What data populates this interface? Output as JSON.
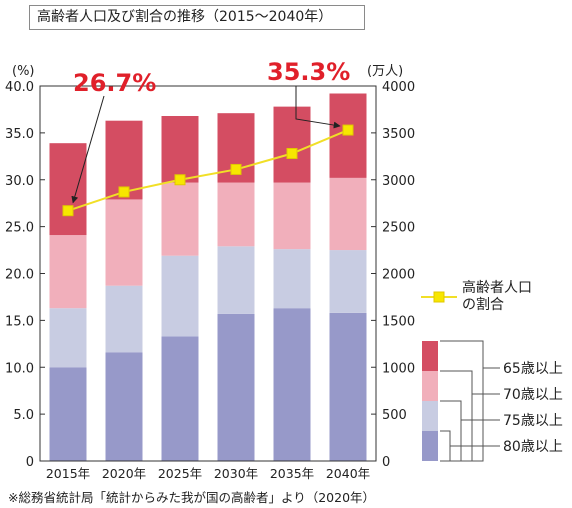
{
  "title": "高齢者人口及び割合の推移（2015〜2040年）",
  "source": "※総務省統計局「統計からみた我が国の高齢者」より（2020年）",
  "chart_data": {
    "type": "bar",
    "stacked": true,
    "categories": [
      "2015年",
      "2020年",
      "2025年",
      "2030年",
      "2035年",
      "2040年"
    ],
    "y_left": {
      "unit_label": "(%)",
      "ylim": [
        0,
        40
      ],
      "ticks": [
        "0",
        "5.0",
        "10.0",
        "15.0",
        "20.0",
        "25.0",
        "30.0",
        "35.0",
        "40.0"
      ]
    },
    "y_right": {
      "unit_label": "(万人)",
      "ylim": [
        0,
        4000
      ],
      "ticks": [
        "0",
        "500",
        "1000",
        "1500",
        "2000",
        "2500",
        "3000",
        "3500",
        "4000"
      ]
    },
    "series": [
      {
        "name": "80歳以上",
        "color": "#9799c9",
        "values": [
          1000,
          1160,
          1330,
          1570,
          1630,
          1580
        ]
      },
      {
        "name": "75歳以上",
        "color": "#c8cce2",
        "values": [
          630,
          710,
          860,
          720,
          630,
          670
        ]
      },
      {
        "name": "70歳以上",
        "color": "#f1afbb",
        "values": [
          780,
          920,
          780,
          680,
          710,
          770
        ]
      },
      {
        "name": "65歳以上",
        "color": "#d44d62",
        "values": [
          980,
          840,
          710,
          740,
          810,
          900
        ]
      }
    ],
    "line": {
      "name": "高齢者人口の割合",
      "color": "#f1df27",
      "values": [
        26.7,
        28.7,
        30.0,
        31.1,
        32.8,
        35.3
      ]
    },
    "annotations": [
      {
        "text": "26.7%",
        "category": "2015年"
      },
      {
        "text": "35.3%",
        "category": "2040年"
      }
    ],
    "legend": {
      "line_label": "高齢者人口\nの割合",
      "bracket_labels": [
        "65歳以上",
        "70歳以上",
        "75歳以上",
        "80歳以上"
      ],
      "placement": "right"
    },
    "grid": false
  }
}
